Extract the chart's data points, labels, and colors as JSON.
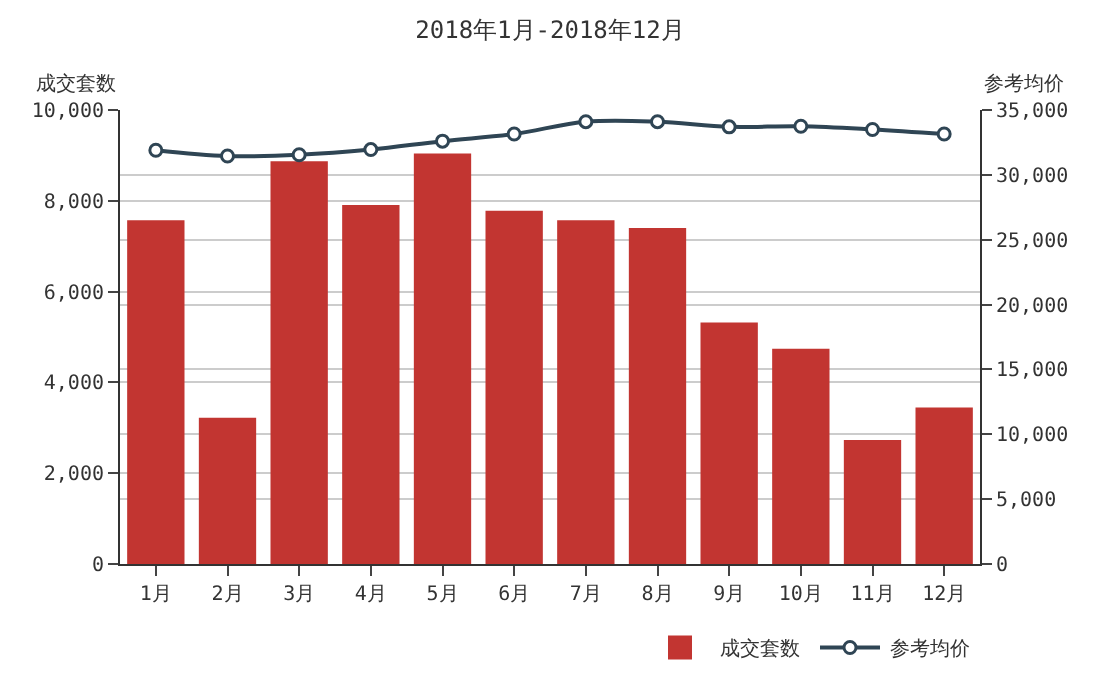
{
  "chart_data": {
    "type": "bar",
    "title": "2018年1月-2018年12月",
    "ylabel": "成交套数",
    "y2label": "参考均价",
    "categories": [
      "1月",
      "2月",
      "3月",
      "4月",
      "5月",
      "6月",
      "7月",
      "8月",
      "9月",
      "10月",
      "11月",
      "12月"
    ],
    "series": [
      {
        "name": "成交套数",
        "color": "#c23531",
        "values": [
          7570,
          3220,
          8870,
          7910,
          9040,
          7780,
          7570,
          7400,
          5320,
          4740,
          2730,
          3450
        ]
      },
      {
        "name": "参考均价",
        "type": "line",
        "axis": "y2",
        "color": "#2f4554",
        "marker": "circle",
        "values": [
          31900,
          31450,
          31550,
          31950,
          32600,
          33150,
          34100,
          34100,
          33700,
          33750,
          33500,
          33150
        ]
      }
    ],
    "ylim": [
      0,
      10000
    ],
    "yticks": [
      {
        "value": 0,
        "label": "0"
      },
      {
        "value": 2000,
        "label": "2,000"
      },
      {
        "value": 4000,
        "label": "4,000"
      },
      {
        "value": 6000,
        "label": "6,000"
      },
      {
        "value": 8000,
        "label": "8,000"
      },
      {
        "value": 10000,
        "label": "10,000"
      }
    ],
    "y2lim": [
      0,
      35000
    ],
    "y2ticks": [
      {
        "value": 0,
        "label": "0"
      },
      {
        "value": 5000,
        "label": "5,000"
      },
      {
        "value": 10000,
        "label": "10,000"
      },
      {
        "value": 15000,
        "label": "15,000"
      },
      {
        "value": 20000,
        "label": "20,000"
      },
      {
        "value": 25000,
        "label": "25,000"
      },
      {
        "value": 30000,
        "label": "30,000"
      },
      {
        "value": 35000,
        "label": "35,000"
      }
    ],
    "grid": true,
    "legend": "bottom right"
  }
}
